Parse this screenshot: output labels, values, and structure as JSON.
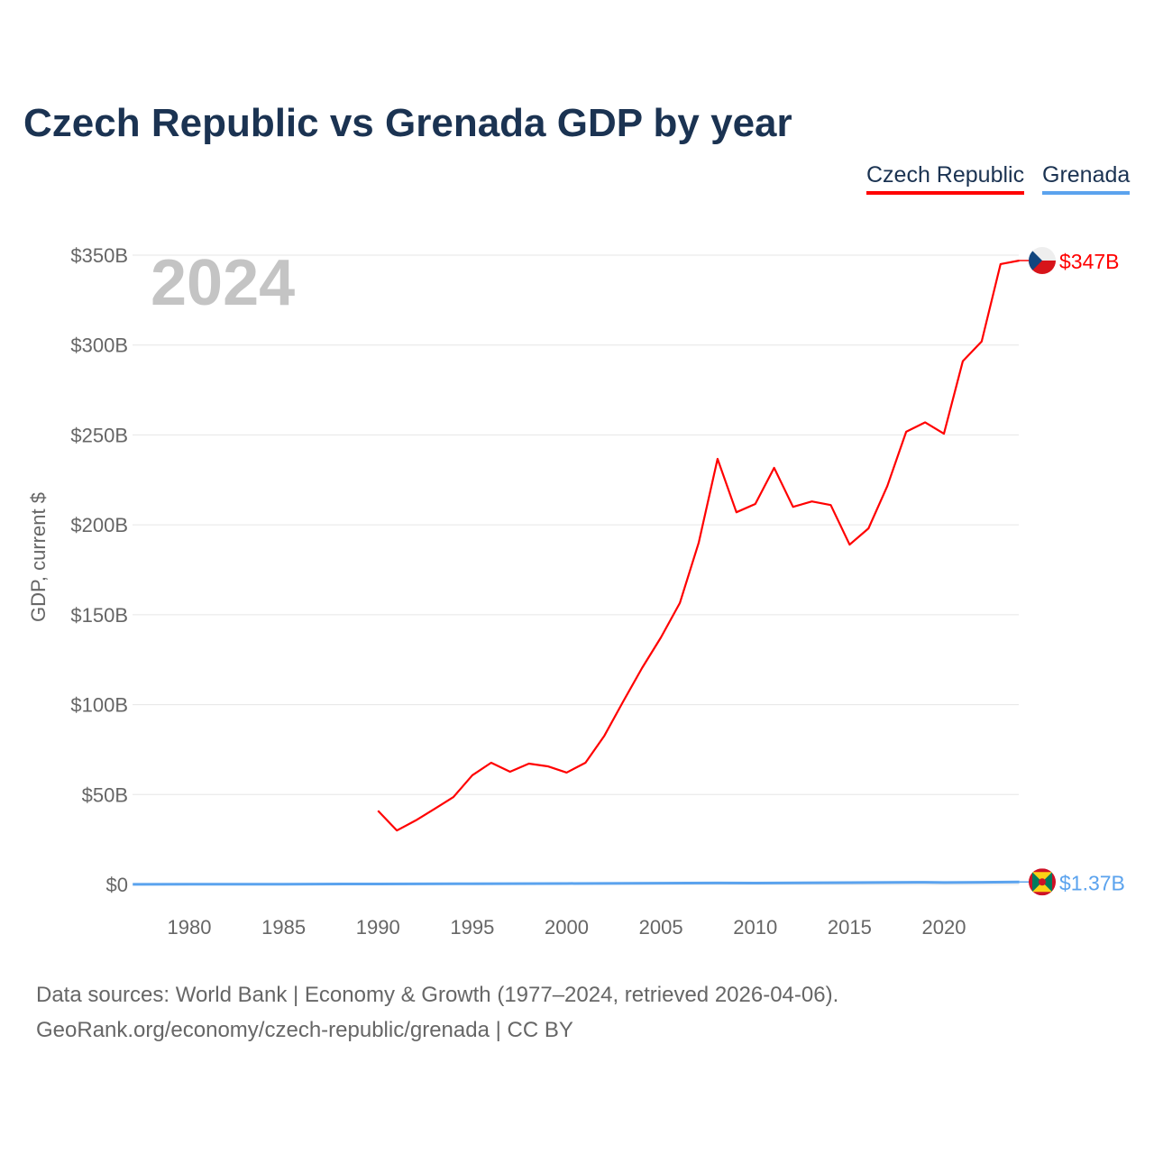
{
  "title": "Czech Republic vs Grenada GDP by year",
  "source_line1": "Data sources: World Bank | Economy & Growth (1977–2024, retrieved 2026-04-06).",
  "source_line2": "GeoRank.org/economy/czech-republic/grenada | CC BY",
  "chart_data": {
    "type": "line",
    "title": "Czech Republic vs Grenada GDP by year",
    "xlabel": "",
    "ylabel": "GDP, current $",
    "year_label": "2024",
    "xlim": [
      1977,
      2024
    ],
    "ylim": [
      0,
      350
    ],
    "x_ticks": [
      1980,
      1985,
      1990,
      1995,
      2000,
      2005,
      2010,
      2015,
      2020
    ],
    "y_ticks": [
      0,
      50,
      100,
      150,
      200,
      250,
      300,
      350
    ],
    "y_tick_labels": [
      "$0",
      "$50B",
      "$100B",
      "$150B",
      "$200B",
      "$250B",
      "$300B",
      "$350B"
    ],
    "grid": true,
    "legend_position": "top-right",
    "series": [
      {
        "name": "Czech Republic",
        "color": "#ff0000",
        "end_label": "$347B",
        "flag": "czech-flag",
        "x": [
          1990,
          1991,
          1992,
          1993,
          1994,
          1995,
          1996,
          1997,
          1998,
          1999,
          2000,
          2001,
          2002,
          2003,
          2004,
          2005,
          2006,
          2007,
          2008,
          2009,
          2010,
          2011,
          2012,
          2013,
          2014,
          2015,
          2016,
          2017,
          2018,
          2019,
          2020,
          2021,
          2022,
          2023,
          2024
        ],
        "values": [
          41,
          30,
          35.6,
          42,
          48.6,
          60.7,
          67.7,
          62.7,
          67.2,
          65.7,
          62.2,
          67.7,
          82.7,
          101.8,
          120.4,
          137.4,
          156.5,
          190,
          236.7,
          207,
          211.6,
          231.7,
          210,
          213,
          211,
          189,
          198,
          221.6,
          251.8,
          257,
          250.7,
          291,
          302,
          345,
          347
        ]
      },
      {
        "name": "Grenada",
        "color": "#5ba3ee",
        "end_label": "$1.37B",
        "flag": "grenada-flag",
        "x": [
          1977,
          1980,
          1985,
          1990,
          1995,
          2000,
          2005,
          2008,
          2010,
          2015,
          2019,
          2020,
          2022,
          2024
        ],
        "values": [
          0.07,
          0.1,
          0.15,
          0.28,
          0.36,
          0.52,
          0.7,
          0.83,
          0.77,
          0.99,
          1.21,
          1.04,
          1.2,
          1.37
        ]
      }
    ]
  }
}
